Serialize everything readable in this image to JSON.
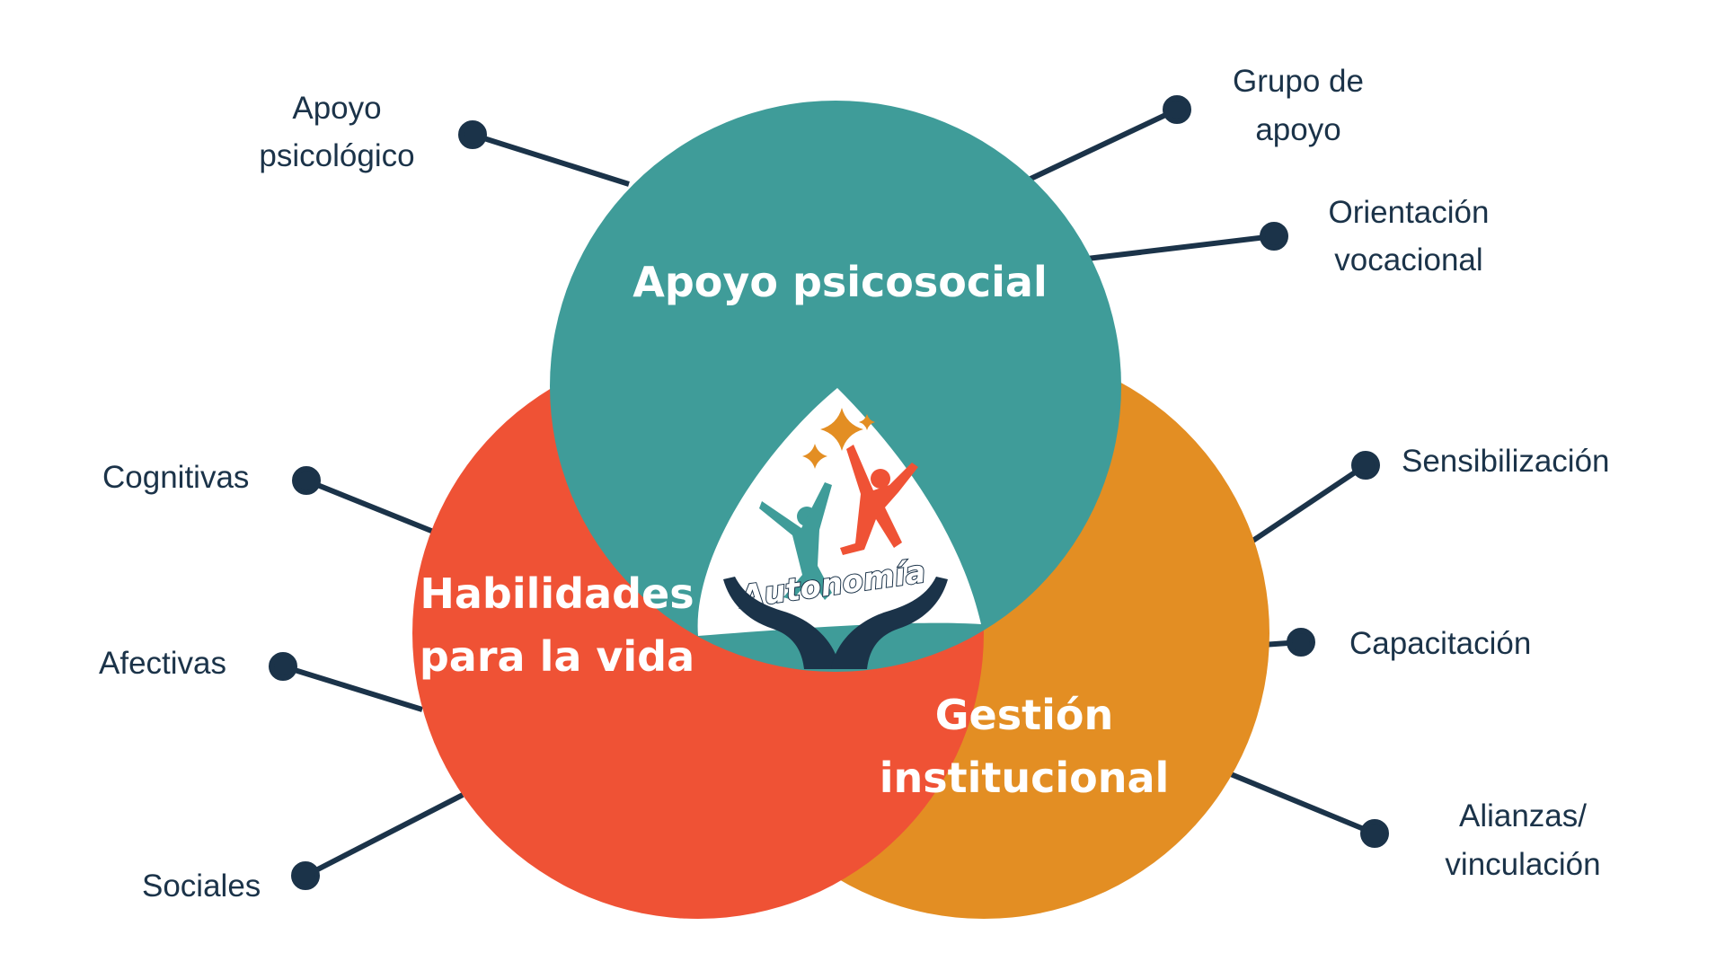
{
  "colors": {
    "teal": "#3f9c99",
    "red": "#ef5235",
    "orange": "#e38e23",
    "navy": "#1b3349",
    "star_orange": "#e38e23",
    "figure_teal": "#3f9c99",
    "figure_red": "#ef5235"
  },
  "circles": {
    "psicosocial": {
      "title": "Apoyo psicosocial"
    },
    "habilidades": {
      "title_line1": "Habilidades",
      "title_line2": "para la vida"
    },
    "gestion": {
      "title_line1": "Gestión",
      "title_line2": "institucional"
    }
  },
  "center": {
    "logo_text": "Autonomía",
    "icons": [
      "star-icon",
      "person-teal-icon",
      "person-red-icon",
      "hands-icon"
    ]
  },
  "labels": {
    "apoyo_psicologico": {
      "line1": "Apoyo",
      "line2": "psicológico"
    },
    "grupo_apoyo": {
      "line1": "Grupo de",
      "line2": "apoyo"
    },
    "orientacion": {
      "line1": "Orientación",
      "line2": "vocacional"
    },
    "cognitivas": {
      "line1": "Cognitivas"
    },
    "afectivas": {
      "line1": "Afectivas"
    },
    "sociales": {
      "line1": "Sociales"
    },
    "sensibilizacion": {
      "line1": "Sensibilización"
    },
    "capacitacion": {
      "line1": "Capacitación"
    },
    "alianzas": {
      "line1": "Alianzas/",
      "line2": "vinculación"
    }
  }
}
